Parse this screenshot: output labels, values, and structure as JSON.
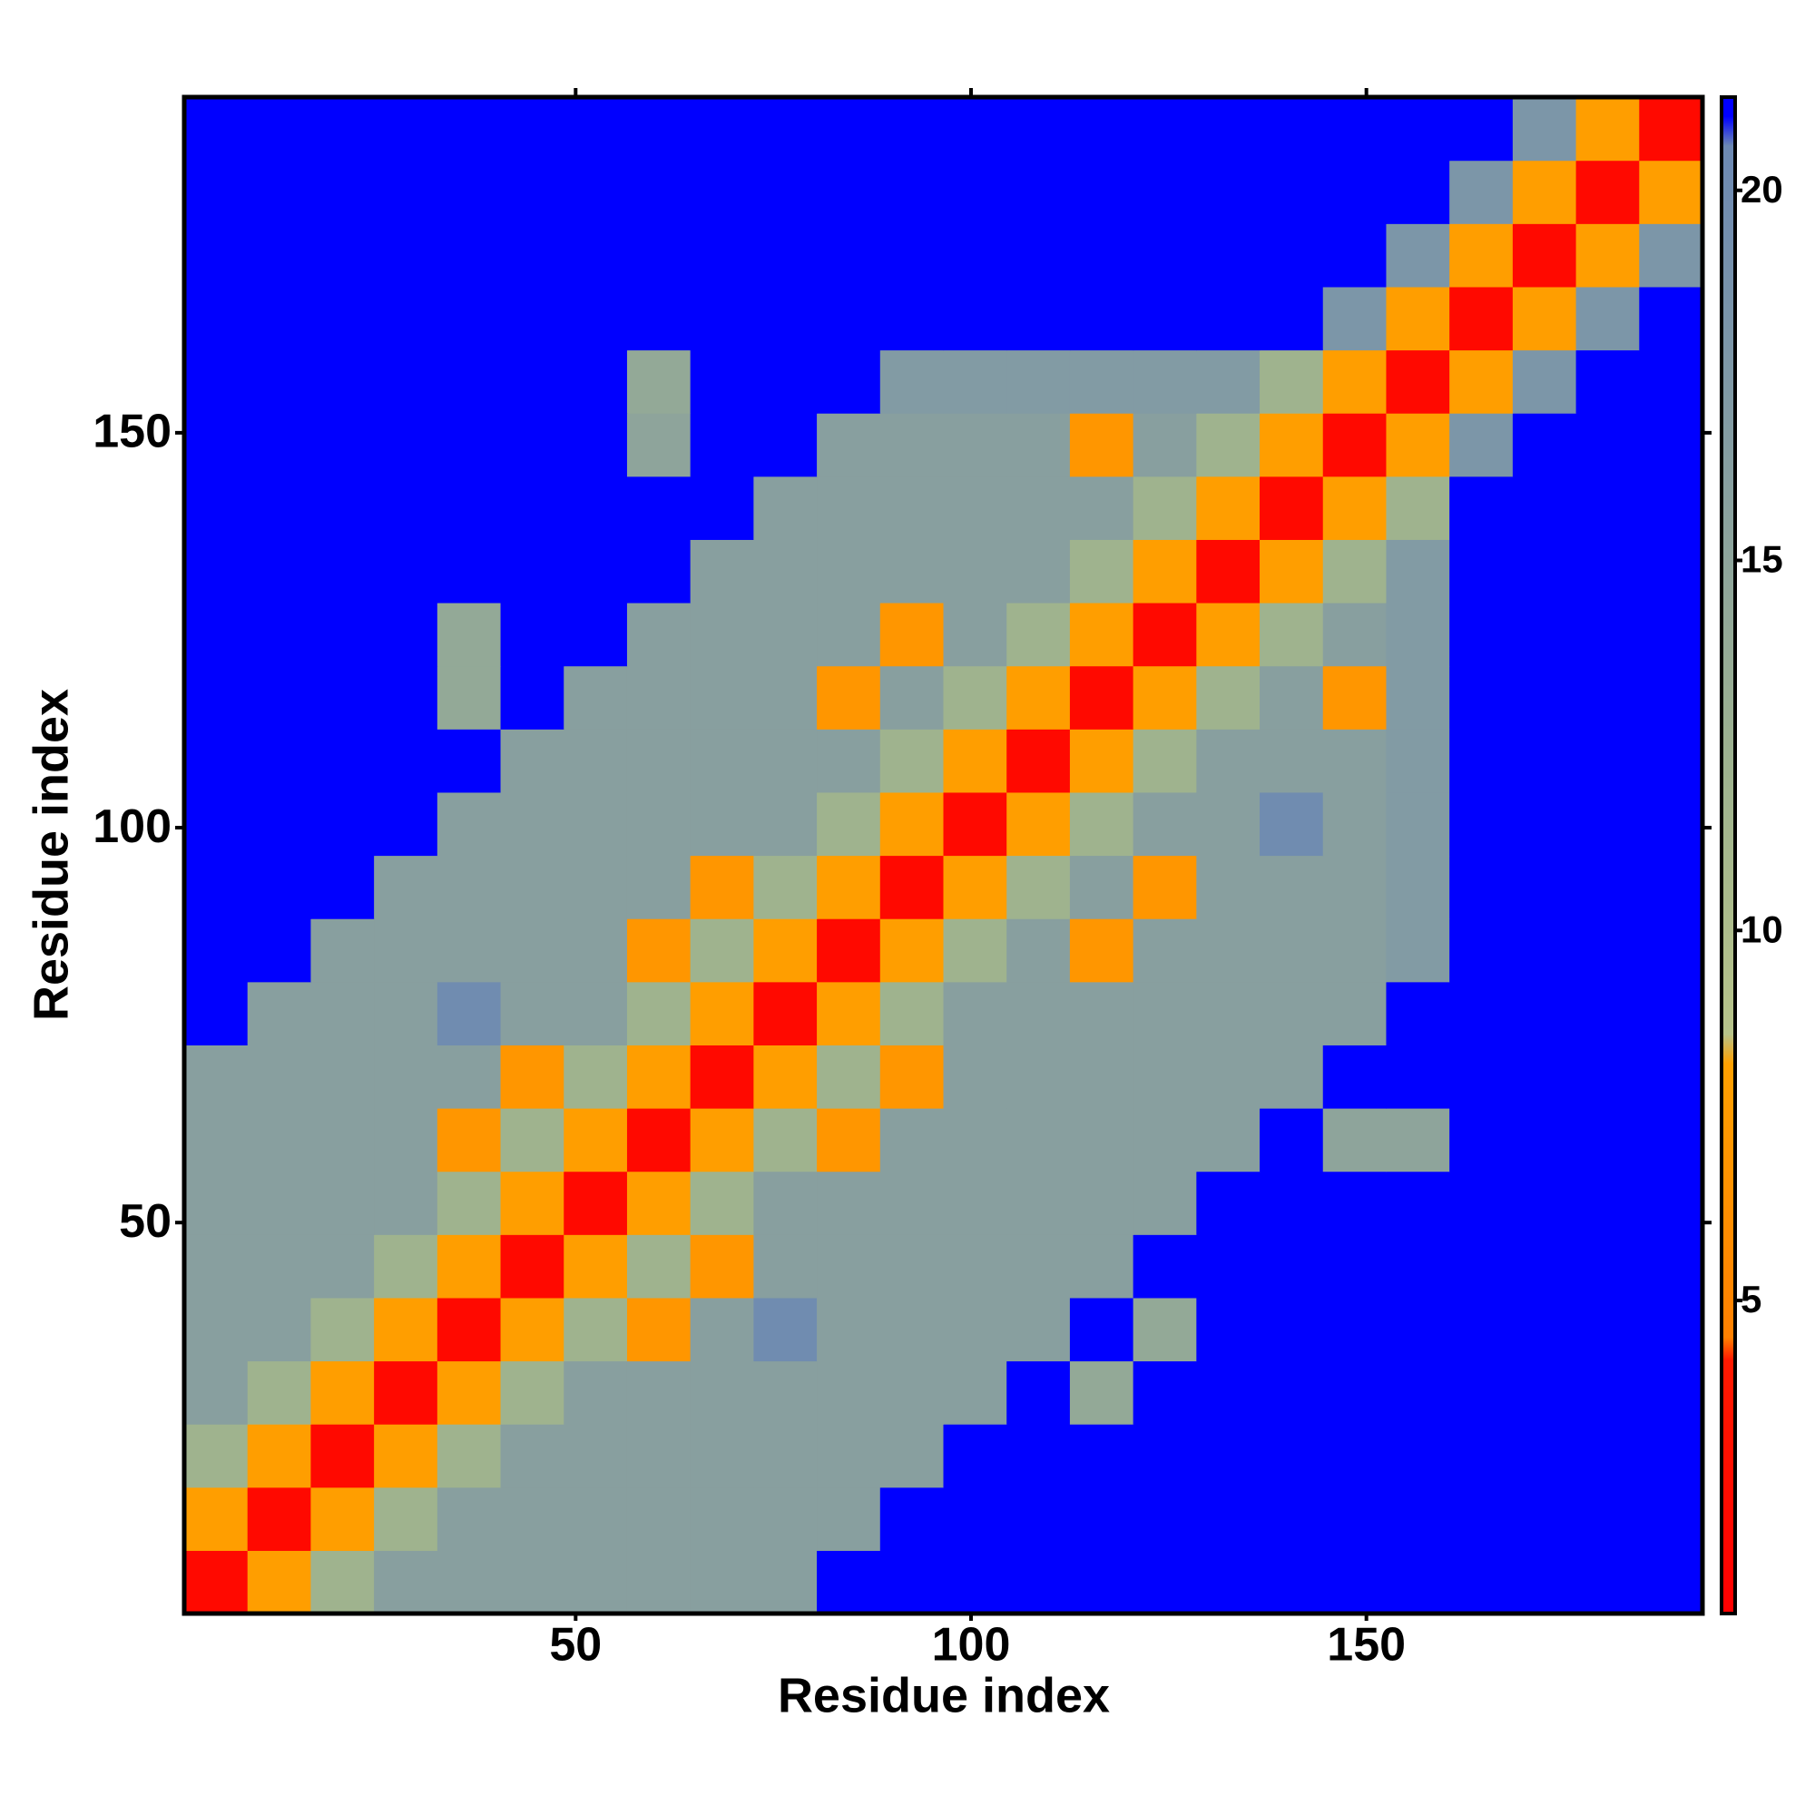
{
  "chart_data": {
    "type": "heatmap",
    "x_label": "Residue index",
    "y_label": "Residue index",
    "x": [
      4.5,
      12.5,
      20.5,
      28.5,
      36.5,
      44.5,
      52.5,
      60.5,
      68.5,
      76.5,
      84.5,
      92.5,
      100.5,
      108.5,
      116.5,
      124.5,
      132.5,
      140.5,
      148.5,
      156.5,
      164.5,
      172.5,
      180.5,
      188.5
    ],
    "y": [
      4.5,
      12.5,
      20.5,
      28.5,
      36.5,
      44.5,
      52.5,
      60.5,
      68.5,
      76.5,
      84.5,
      92.5,
      100.5,
      108.5,
      116.5,
      124.5,
      132.5,
      140.5,
      148.5,
      156.5,
      164.5,
      172.5,
      180.5,
      188.5
    ],
    "z": [
      [
        2,
        8,
        12,
        16,
        16,
        16,
        16,
        16,
        16,
        16,
        21,
        21,
        21,
        21,
        21,
        21,
        21,
        21,
        21,
        21,
        21,
        21,
        21,
        21
      ],
      [
        8,
        2,
        8,
        12,
        16,
        16,
        16,
        16,
        16,
        16,
        16,
        21,
        21,
        21,
        21,
        21,
        21,
        21,
        21,
        21,
        21,
        21,
        21,
        21
      ],
      [
        12,
        8,
        2,
        8,
        12,
        16,
        16,
        16,
        16,
        16,
        16,
        16,
        21,
        21,
        21,
        21,
        21,
        21,
        21,
        21,
        21,
        21,
        21,
        21
      ],
      [
        16,
        12,
        8,
        2,
        8,
        12,
        16,
        16,
        16,
        16,
        16,
        16,
        16,
        21,
        14,
        21,
        21,
        21,
        21,
        21,
        21,
        21,
        21,
        21
      ],
      [
        16,
        16,
        12,
        8,
        2,
        8,
        12,
        7,
        16,
        20,
        16,
        16,
        16,
        16,
        21,
        14,
        21,
        21,
        21,
        21,
        21,
        21,
        21,
        21
      ],
      [
        16,
        16,
        16,
        12,
        8,
        2,
        8,
        12,
        7,
        16,
        16,
        16,
        16,
        16,
        16,
        21,
        21,
        21,
        21,
        21,
        21,
        21,
        21,
        21
      ],
      [
        16,
        16,
        16,
        16,
        12,
        8,
        2,
        8,
        12,
        16,
        16,
        16,
        16,
        16,
        16,
        16,
        21,
        21,
        21,
        21,
        21,
        21,
        21,
        21
      ],
      [
        16,
        16,
        16,
        16,
        7,
        12,
        8,
        2,
        8,
        12,
        7,
        16,
        16,
        16,
        16,
        16,
        16,
        21,
        15,
        15,
        21,
        21,
        21,
        21
      ],
      [
        16,
        16,
        16,
        16,
        16,
        7,
        12,
        8,
        2,
        8,
        12,
        7,
        16,
        16,
        16,
        16,
        16,
        16,
        21,
        21,
        21,
        21,
        21,
        21
      ],
      [
        21,
        16,
        16,
        16,
        20,
        16,
        16,
        12,
        8,
        2,
        8,
        12,
        16,
        16,
        16,
        16,
        16,
        16,
        16,
        21,
        21,
        21,
        21,
        21
      ],
      [
        21,
        21,
        16,
        16,
        16,
        16,
        16,
        7,
        12,
        8,
        2,
        8,
        12,
        16,
        7,
        16,
        16,
        16,
        16,
        17,
        21,
        21,
        21,
        21
      ],
      [
        21,
        21,
        21,
        16,
        16,
        16,
        16,
        16,
        7,
        12,
        8,
        2,
        8,
        12,
        16,
        7,
        16,
        16,
        16,
        17,
        21,
        21,
        21,
        21
      ],
      [
        21,
        21,
        21,
        21,
        16,
        16,
        16,
        16,
        16,
        16,
        12,
        8,
        2,
        8,
        12,
        16,
        16,
        20,
        16,
        17,
        21,
        21,
        21,
        21
      ],
      [
        21,
        21,
        21,
        21,
        21,
        16,
        16,
        16,
        16,
        16,
        16,
        12,
        8,
        2,
        8,
        12,
        16,
        16,
        16,
        17,
        21,
        21,
        21,
        21
      ],
      [
        21,
        21,
        21,
        21,
        14,
        21,
        16,
        16,
        16,
        16,
        7,
        16,
        12,
        8,
        2,
        8,
        12,
        16,
        7,
        17,
        21,
        21,
        21,
        21
      ],
      [
        21,
        21,
        21,
        21,
        14,
        21,
        21,
        16,
        16,
        16,
        16,
        7,
        16,
        12,
        8,
        2,
        8,
        12,
        16,
        17,
        21,
        21,
        21,
        21
      ],
      [
        21,
        21,
        21,
        21,
        21,
        21,
        21,
        21,
        16,
        16,
        16,
        16,
        16,
        16,
        12,
        8,
        2,
        8,
        12,
        17,
        21,
        21,
        21,
        21
      ],
      [
        21,
        21,
        21,
        21,
        21,
        21,
        21,
        21,
        21,
        16,
        16,
        16,
        16,
        16,
        16,
        12,
        8,
        2,
        8,
        12,
        21,
        21,
        21,
        21
      ],
      [
        21,
        21,
        21,
        21,
        21,
        21,
        21,
        15,
        21,
        21,
        16,
        16,
        16,
        16,
        7,
        16,
        12,
        8,
        2,
        8,
        18,
        21,
        21,
        21
      ],
      [
        21,
        21,
        21,
        21,
        21,
        21,
        21,
        14,
        21,
        21,
        21,
        17,
        17,
        17,
        17,
        17,
        17,
        12,
        8,
        2,
        8,
        18,
        21,
        21
      ],
      [
        21,
        21,
        21,
        21,
        21,
        21,
        21,
        21,
        21,
        21,
        21,
        21,
        21,
        21,
        21,
        21,
        21,
        21,
        18,
        8,
        2,
        8,
        18,
        21
      ],
      [
        21,
        21,
        21,
        21,
        21,
        21,
        21,
        21,
        21,
        21,
        21,
        21,
        21,
        21,
        21,
        21,
        21,
        21,
        21,
        18,
        8,
        2,
        8,
        18
      ],
      [
        21,
        21,
        21,
        21,
        21,
        21,
        21,
        21,
        21,
        21,
        21,
        21,
        21,
        21,
        21,
        21,
        21,
        21,
        21,
        21,
        18,
        8,
        2,
        8
      ],
      [
        21,
        21,
        21,
        21,
        21,
        21,
        21,
        21,
        21,
        21,
        21,
        21,
        21,
        21,
        21,
        21,
        21,
        21,
        21,
        21,
        21,
        18,
        8,
        2
      ]
    ],
    "xlim": [
      0.5,
      192.5
    ],
    "ylim": [
      0.5,
      192.5
    ],
    "xticks": [
      50,
      100,
      150
    ],
    "yticks": [
      50,
      100,
      150
    ],
    "zlim": [
      0.77,
      21.26
    ],
    "zticks": [
      5,
      10,
      15,
      20
    ],
    "colorscale": [
      [
        0.77,
        "#ff0000"
      ],
      [
        4.2,
        "#ff1a00"
      ],
      [
        4.5,
        "#ff8000"
      ],
      [
        8.2,
        "#ffa000"
      ],
      [
        8.6,
        "#b7c38a"
      ],
      [
        12,
        "#9fb38e"
      ],
      [
        20.6,
        "#6d89b3"
      ],
      [
        21,
        "#0000ff"
      ]
    ]
  }
}
